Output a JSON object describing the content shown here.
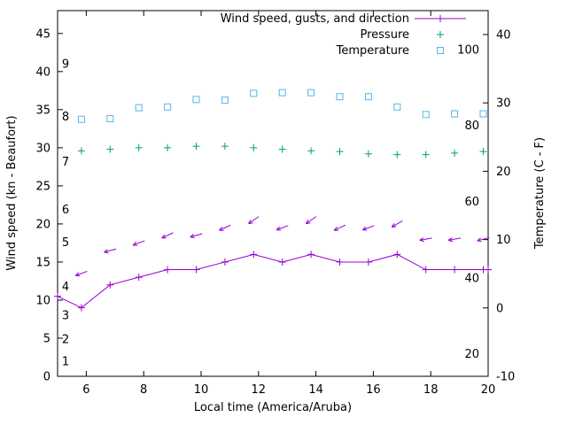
{
  "chart_data": {
    "type": "line",
    "title": "",
    "xlabel": "Local time (America/Aruba)",
    "ylabel_left": "Wind speed (kn - Beaufort)",
    "ylabel_right": "Temperature (C - F)",
    "x_range": [
      5,
      20
    ],
    "x_ticks": [
      6,
      8,
      10,
      12,
      14,
      16,
      18,
      20
    ],
    "y_left_range": [
      0,
      48
    ],
    "y_left_ticks": [
      0,
      5,
      10,
      15,
      20,
      25,
      30,
      35,
      40,
      45
    ],
    "y_right_range": [
      -10,
      43.5
    ],
    "y_right_ticks": [
      -10,
      0,
      10,
      20,
      30,
      40
    ],
    "grid": false,
    "legend_position": "top-right-inside",
    "beaufort_scale": [
      {
        "label": "1",
        "kn": 2.0
      },
      {
        "label": "2",
        "kn": 4.9
      },
      {
        "label": "3",
        "kn": 8.0
      },
      {
        "label": "4",
        "kn": 11.8
      },
      {
        "label": "5",
        "kn": 17.6
      },
      {
        "label": "6",
        "kn": 21.9
      },
      {
        "label": "7",
        "kn": 28.2
      },
      {
        "label": "8",
        "kn": 34.1
      },
      {
        "label": "9",
        "kn": 41.0
      }
    ],
    "fahrenheit_scale": [
      {
        "label": "20",
        "c": -6.7
      },
      {
        "label": "40",
        "c": 4.4
      },
      {
        "label": "60",
        "c": 15.6
      },
      {
        "label": "80",
        "c": 26.7
      },
      {
        "label": "100",
        "c": 37.8
      }
    ],
    "series": [
      {
        "name": "Wind speed, gusts, and direction",
        "color": "#9400d3",
        "axis": "left",
        "style": "linespoints",
        "in_legend": true,
        "x": [
          5,
          5.83,
          6.83,
          7.83,
          8.83,
          9.83,
          10.83,
          11.83,
          12.83,
          13.83,
          14.83,
          15.83,
          16.83,
          17.83,
          18.83,
          19.83,
          20
        ],
        "values": [
          10.5,
          9,
          12,
          13,
          14,
          14,
          15,
          16,
          15,
          16,
          15,
          15,
          16,
          14,
          14,
          14,
          14
        ]
      },
      {
        "name": "Wind gust direction",
        "color": "#9400d3",
        "axis": "left",
        "style": "arrows",
        "in_legend": false,
        "x": [
          5.83,
          6.83,
          7.83,
          8.83,
          9.83,
          10.83,
          11.83,
          12.83,
          13.83,
          14.83,
          15.83,
          16.83,
          17.83,
          18.83,
          19.83
        ],
        "values": [
          13.5,
          16.5,
          17.5,
          18.5,
          18.5,
          19.5,
          20.5,
          19.5,
          20.5,
          19.5,
          19.5,
          20,
          18,
          18,
          18
        ],
        "dir_deg": [
          200,
          195,
          200,
          205,
          195,
          205,
          215,
          200,
          215,
          205,
          200,
          210,
          190,
          190,
          195
        ]
      },
      {
        "name": "Pressure",
        "color": "#009e73",
        "axis": "left",
        "style": "points-plus",
        "in_legend": true,
        "x": [
          5.83,
          6.83,
          7.83,
          8.83,
          9.83,
          10.83,
          11.83,
          12.83,
          13.83,
          14.83,
          15.83,
          16.83,
          17.83,
          18.83,
          19.83
        ],
        "values": [
          29.6,
          29.8,
          30.0,
          30.0,
          30.2,
          30.2,
          30.0,
          29.8,
          29.6,
          29.5,
          29.2,
          29.1,
          29.1,
          29.3,
          29.5
        ]
      },
      {
        "name": "Temperature",
        "color": "#56b4e9",
        "axis": "right",
        "style": "points-square",
        "in_legend": true,
        "x": [
          5.83,
          6.83,
          7.83,
          8.83,
          9.83,
          10.83,
          11.83,
          12.83,
          13.83,
          14.83,
          15.83,
          16.83,
          17.83,
          18.83,
          19.83
        ],
        "values": [
          27.6,
          27.7,
          29.3,
          29.4,
          30.5,
          30.4,
          31.4,
          31.5,
          31.5,
          30.9,
          30.9,
          29.4,
          28.3,
          28.4,
          28.4
        ]
      }
    ]
  }
}
